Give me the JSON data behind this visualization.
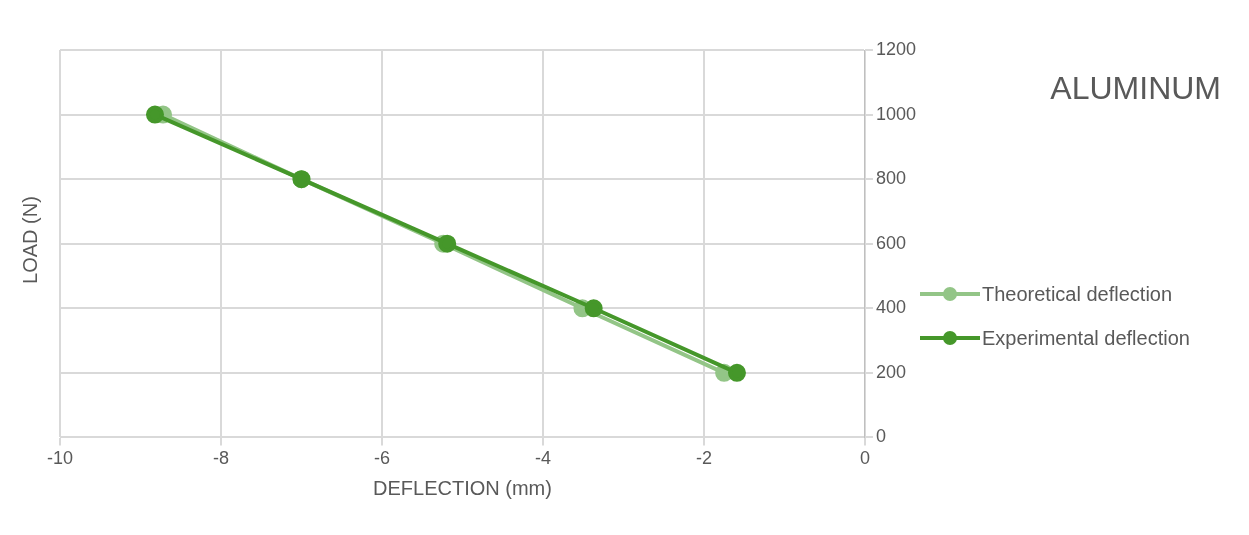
{
  "chart_data": {
    "type": "line",
    "title": "ALUMINUM",
    "xlabel": "DEFLECTION (mm)",
    "ylabel": "LOAD (N)",
    "xlim": [
      -10,
      0
    ],
    "xticks": [
      -10,
      -8,
      -6,
      -4,
      -2,
      0
    ],
    "ylim": [
      0,
      1200
    ],
    "yticks": [
      0,
      200,
      400,
      600,
      800,
      1000,
      1200
    ],
    "grid": true,
    "legend": "right",
    "marker": "circle",
    "line_style": "solid",
    "series": [
      {
        "name": "Theoretical deflection",
        "color": "#93c587",
        "x": [
          -8.72,
          -7.0,
          -5.24,
          -3.51,
          -1.75
        ],
        "values": [
          1000,
          800,
          600,
          400,
          200
        ]
      },
      {
        "name": "Experimental deflection",
        "color": "#45972a",
        "x": [
          -8.82,
          -7.0,
          -5.19,
          -3.37,
          -1.59
        ],
        "values": [
          1000,
          800,
          600,
          400,
          200
        ]
      }
    ]
  }
}
